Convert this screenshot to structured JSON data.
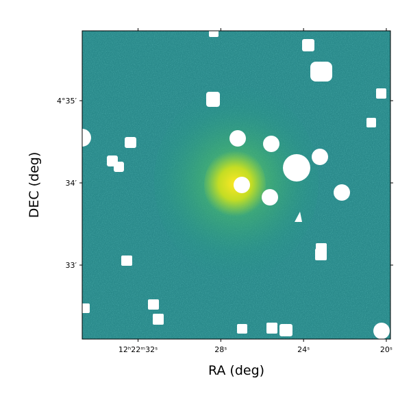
{
  "chart_data": {
    "type": "image",
    "xlabel": "RA (deg)",
    "ylabel": "DEC (deg)",
    "xlim": [
      34.7,
      19.8
    ],
    "xticks": [
      {
        "value": 32,
        "label": "12ʰ22ᵐ32ˢ"
      },
      {
        "value": 28,
        "label": "28ˢ"
      },
      {
        "value": 24,
        "label": "24ˢ"
      },
      {
        "value": 20,
        "label": "20ˢ"
      }
    ],
    "ylim": [
      32.1,
      35.85
    ],
    "yticks": [
      {
        "value": 35,
        "label": "4°35′"
      },
      {
        "value": 34,
        "label": "34′"
      },
      {
        "value": 33,
        "label": "33′"
      }
    ],
    "colormap": "viridis"
  }
}
